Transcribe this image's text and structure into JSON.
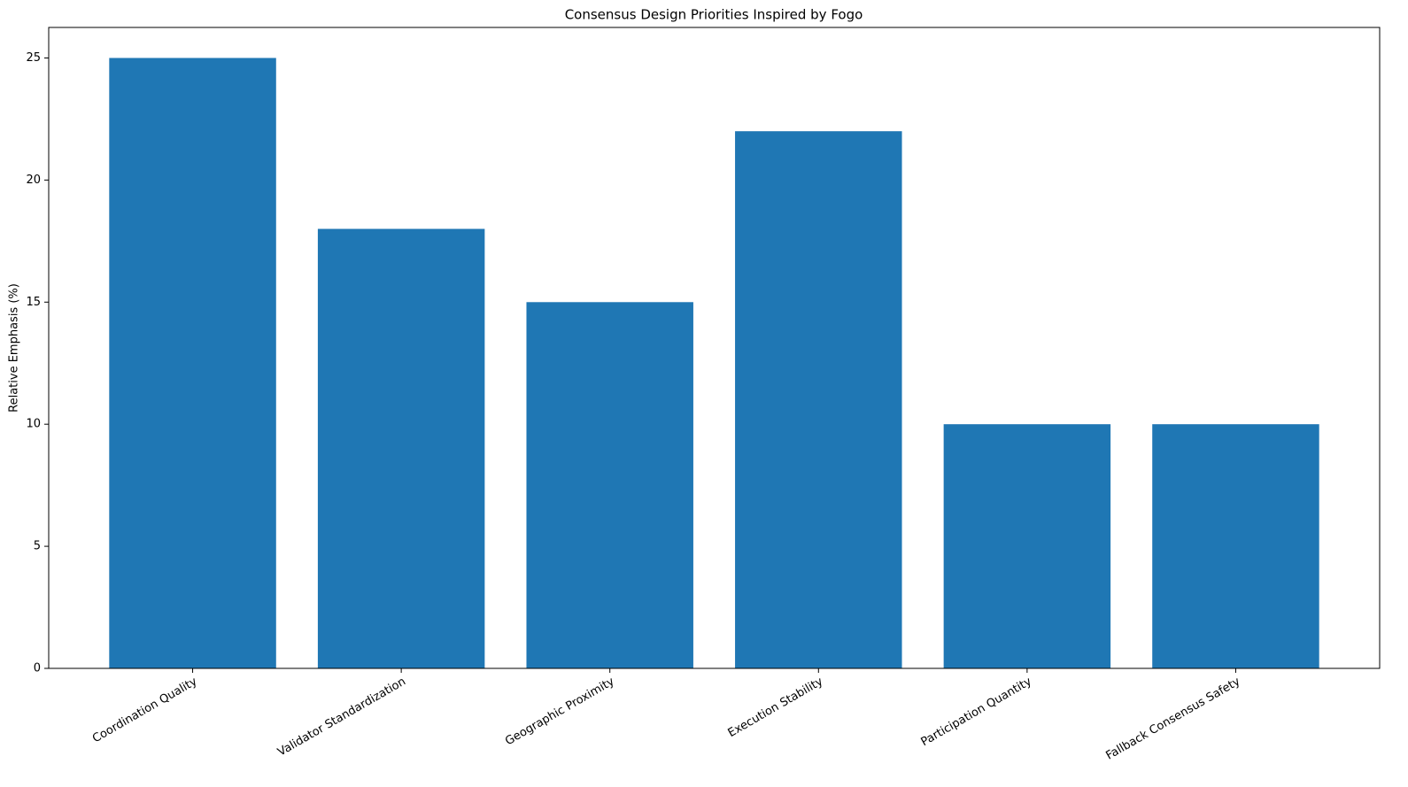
{
  "chart_data": {
    "type": "bar",
    "title": "Consensus Design Priorities Inspired by Fogo",
    "y_label": "Relative Emphasis (%)",
    "categories": [
      "Coordination Quality",
      "Validator Standardization",
      "Geographic Proximity",
      "Execution Stability",
      "Participation Quantity",
      "Fallback Consensus Safety"
    ],
    "values": [
      25,
      18,
      15,
      22,
      10,
      10
    ],
    "color": "#1f77b4",
    "ylim": [
      0,
      26.25
    ],
    "yticks": [
      0,
      5,
      10,
      15,
      20,
      25
    ],
    "grid": false
  }
}
